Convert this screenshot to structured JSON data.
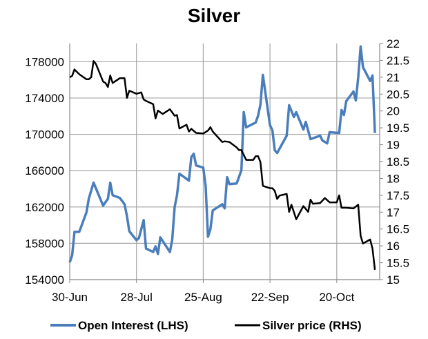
{
  "chart_data": {
    "type": "line",
    "title": "Silver",
    "grid": true,
    "legend_placement": "bottom",
    "x_range": [
      "30-Jun",
      "7-Nov"
    ],
    "x_ticks": [
      "30-Jun",
      "28-Jul",
      "25-Aug",
      "22-Sep",
      "20-Oct"
    ],
    "y_left": {
      "range": [
        154000,
        180000
      ],
      "ticks": [
        "154000",
        "158000",
        "162000",
        "166000",
        "170000",
        "174000",
        "178000"
      ]
    },
    "y_right": {
      "range": [
        15,
        22
      ],
      "ticks": [
        "15",
        "15.5",
        "16",
        "16.5",
        "17",
        "17.5",
        "18",
        "18.5",
        "19",
        "19.5",
        "20",
        "20.5",
        "21",
        "21.5",
        "22"
      ]
    },
    "series": [
      {
        "name": "Open Interest (LHS)",
        "axis": "left",
        "color": "#4a7ebb",
        "points": [
          [
            "30-Jun",
            155900
          ],
          [
            "1-Jul",
            156670
          ],
          [
            "2-Jul",
            159260
          ],
          [
            "4-Jul",
            159260
          ],
          [
            "7-Jul",
            161400
          ],
          [
            "8-Jul",
            162900
          ],
          [
            "10-Jul",
            164670
          ],
          [
            "14-Jul",
            162150
          ],
          [
            "16-Jul",
            162900
          ],
          [
            "17-Jul",
            164670
          ],
          [
            "18-Jul",
            163300
          ],
          [
            "21-Jul",
            163000
          ],
          [
            "23-Jul",
            162300
          ],
          [
            "24-Jul",
            161000
          ],
          [
            "25-Jul",
            159330
          ],
          [
            "28-Jul",
            158340
          ],
          [
            "29-Jul",
            158570
          ],
          [
            "31-Jul",
            160550
          ],
          [
            "1-Aug",
            157430
          ],
          [
            "4-Aug",
            157050
          ],
          [
            "5-Aug",
            157660
          ],
          [
            "6-Aug",
            156820
          ],
          [
            "7-Aug",
            158650
          ],
          [
            "11-Aug",
            157050
          ],
          [
            "12-Aug",
            158420
          ],
          [
            "13-Aug",
            162000
          ],
          [
            "14-Aug",
            163300
          ],
          [
            "15-Aug",
            165660
          ],
          [
            "19-Aug",
            164900
          ],
          [
            "20-Aug",
            167490
          ],
          [
            "21-Aug",
            167870
          ],
          [
            "22-Aug",
            166570
          ],
          [
            "25-Aug",
            166340
          ],
          [
            "26-Aug",
            164290
          ],
          [
            "27-Aug",
            158720
          ],
          [
            "28-Aug",
            159560
          ],
          [
            "29-Aug",
            161620
          ],
          [
            "2-Sep",
            162300
          ],
          [
            "3-Sep",
            161850
          ],
          [
            "4-Sep",
            165280
          ],
          [
            "5-Sep",
            164510
          ],
          [
            "8-Sep",
            164590
          ],
          [
            "10-Sep",
            166040
          ],
          [
            "11-Sep",
            172440
          ],
          [
            "12-Sep",
            170760
          ],
          [
            "16-Sep",
            171300
          ],
          [
            "17-Sep",
            172060
          ],
          [
            "18-Sep",
            173280
          ],
          [
            "19-Sep",
            176550
          ],
          [
            "22-Sep",
            171000
          ],
          [
            "23-Sep",
            170460
          ],
          [
            "24-Sep",
            168250
          ],
          [
            "25-Sep",
            167940
          ],
          [
            "29-Sep",
            169850
          ],
          [
            "30-Sep",
            173200
          ],
          [
            "2-Oct",
            171900
          ],
          [
            "3-Oct",
            172440
          ],
          [
            "6-Oct",
            170530
          ],
          [
            "7-Oct",
            171370
          ],
          [
            "9-Oct",
            169470
          ],
          [
            "13-Oct",
            169850
          ],
          [
            "14-Oct",
            169320
          ],
          [
            "16-Oct",
            169010
          ],
          [
            "17-Oct",
            170230
          ],
          [
            "21-Oct",
            170150
          ],
          [
            "22-Oct",
            172670
          ],
          [
            "23-Oct",
            172130
          ],
          [
            "24-Oct",
            173660
          ],
          [
            "27-Oct",
            174720
          ],
          [
            "28-Oct",
            173730
          ],
          [
            "29-Oct",
            176250
          ],
          [
            "30-Oct",
            179670
          ],
          [
            "31-Oct",
            177390
          ],
          [
            "3-Nov",
            175870
          ],
          [
            "4-Nov",
            176480
          ],
          [
            "5-Nov",
            170150
          ]
        ]
      },
      {
        "name": "Silver price (RHS)",
        "axis": "right",
        "color": "#000000",
        "points": [
          [
            "30-Jun",
            21.0
          ],
          [
            "1-Jul",
            21.04
          ],
          [
            "2-Jul",
            21.23
          ],
          [
            "4-Jul",
            21.09
          ],
          [
            "7-Jul",
            20.94
          ],
          [
            "8-Jul",
            20.94
          ],
          [
            "9-Jul",
            21.0
          ],
          [
            "10-Jul",
            21.48
          ],
          [
            "11-Jul",
            21.39
          ],
          [
            "14-Jul",
            20.87
          ],
          [
            "15-Jul",
            20.83
          ],
          [
            "16-Jul",
            20.71
          ],
          [
            "17-Jul",
            21.05
          ],
          [
            "18-Jul",
            20.83
          ],
          [
            "21-Jul",
            20.97
          ],
          [
            "23-Jul",
            20.97
          ],
          [
            "24-Jul",
            20.39
          ],
          [
            "25-Jul",
            20.6
          ],
          [
            "28-Jul",
            20.51
          ],
          [
            "30-Jul",
            20.55
          ],
          [
            "31-Jul",
            20.34
          ],
          [
            "1-Aug",
            20.3
          ],
          [
            "4-Aug",
            20.2
          ],
          [
            "5-Aug",
            19.78
          ],
          [
            "6-Aug",
            20.01
          ],
          [
            "8-Aug",
            19.91
          ],
          [
            "11-Aug",
            20.05
          ],
          [
            "13-Aug",
            19.86
          ],
          [
            "14-Aug",
            19.88
          ],
          [
            "15-Aug",
            19.48
          ],
          [
            "18-Aug",
            19.59
          ],
          [
            "19-Aug",
            19.39
          ],
          [
            "20-Aug",
            19.47
          ],
          [
            "22-Aug",
            19.35
          ],
          [
            "25-Aug",
            19.33
          ],
          [
            "27-Aug",
            19.42
          ],
          [
            "28-Aug",
            19.52
          ],
          [
            "29-Aug",
            19.39
          ],
          [
            "2-Sep",
            19.08
          ],
          [
            "3-Sep",
            19.1
          ],
          [
            "5-Sep",
            19.08
          ],
          [
            "8-Sep",
            18.92
          ],
          [
            "9-Sep",
            18.84
          ],
          [
            "10-Sep",
            18.84
          ],
          [
            "12-Sep",
            18.55
          ],
          [
            "15-Sep",
            18.55
          ],
          [
            "16-Sep",
            18.66
          ],
          [
            "17-Sep",
            18.66
          ],
          [
            "18-Sep",
            18.48
          ],
          [
            "19-Sep",
            17.78
          ],
          [
            "22-Sep",
            17.71
          ],
          [
            "23-Sep",
            17.71
          ],
          [
            "24-Sep",
            17.63
          ],
          [
            "25-Sep",
            17.39
          ],
          [
            "26-Sep",
            17.49
          ],
          [
            "29-Sep",
            17.54
          ],
          [
            "30-Sep",
            17.01
          ],
          [
            "1-Oct",
            17.22
          ],
          [
            "3-Oct",
            16.79
          ],
          [
            "6-Oct",
            17.18
          ],
          [
            "8-Oct",
            17.01
          ],
          [
            "9-Oct",
            17.37
          ],
          [
            "10-Oct",
            17.25
          ],
          [
            "13-Oct",
            17.27
          ],
          [
            "15-Oct",
            17.42
          ],
          [
            "17-Oct",
            17.29
          ],
          [
            "20-Oct",
            17.29
          ],
          [
            "21-Oct",
            17.5
          ],
          [
            "22-Oct",
            17.13
          ],
          [
            "24-Oct",
            17.13
          ],
          [
            "27-Oct",
            17.11
          ],
          [
            "29-Oct",
            17.22
          ],
          [
            "30-Oct",
            16.3
          ],
          [
            "31-Oct",
            16.07
          ],
          [
            "3-Nov",
            16.19
          ],
          [
            "4-Nov",
            15.92
          ],
          [
            "5-Nov",
            15.29
          ]
        ]
      }
    ]
  }
}
